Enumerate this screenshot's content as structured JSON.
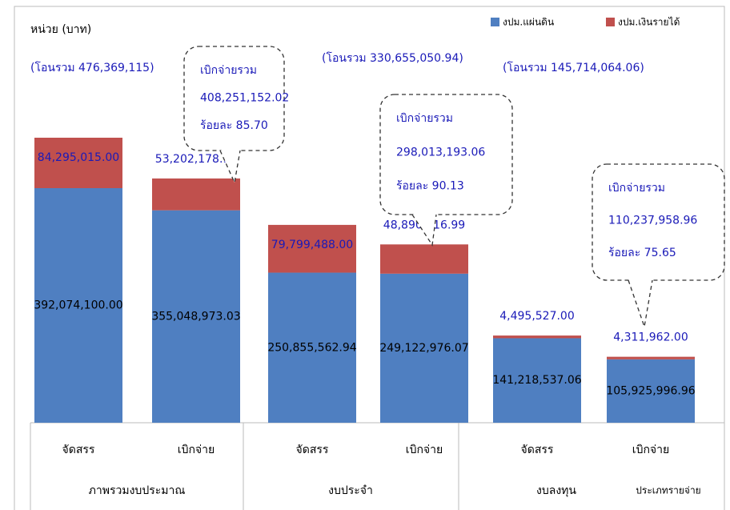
{
  "chart_data": {
    "type": "bar",
    "stacked": true,
    "unit_label": "หน่วย (บาท)",
    "categories": [
      "จัดสรร",
      "เบิกจ่าย",
      "จัดสรร",
      "เบิกจ่าย",
      "จัดสรร",
      "เบิกจ่าย"
    ],
    "groups": [
      "ภาพรวมงบประมาณ",
      "งบประจำ",
      "งบลงทุน"
    ],
    "x_label": "ประเภทรายจ่าย",
    "series": [
      {
        "name": "งปม.แผ่นดิน",
        "color": "#4f7fc1",
        "values": [
          392074100.0,
          355048973.03,
          250855562.94,
          249122976.07,
          141218537.06,
          105925996.96
        ],
        "value_labels": [
          "392,074,100.00",
          "355,048,973.03",
          "250,855,562.94",
          "249,122,976.07",
          "141,218,537.06",
          "105,925,996.96"
        ]
      },
      {
        "name": "งปม.เงินรายได้",
        "color": "#c0504d",
        "values": [
          84295015.0,
          53202178.99,
          79799488.0,
          48890216.99,
          4495527.0,
          4311962.0
        ],
        "value_labels": [
          "84,295,015.00",
          "53,202,178.99",
          "79,799,488.00",
          "48,890,216.99",
          "4,495,527.00",
          "4,311,962.00"
        ]
      }
    ],
    "totals": [
      "(โอนรวม 476,369,115)",
      "(โอนรวม 330,655,050.94)",
      "(โอนรวม 145,714,064.06)"
    ],
    "callouts": [
      {
        "lines": [
          "เบิกจ่ายรวม",
          "408,251,152.02",
          "ร้อยละ 85.70"
        ]
      },
      {
        "lines": [
          "เบิกจ่ายรวม",
          "298,013,193.06",
          "ร้อยละ 90.13"
        ]
      },
      {
        "lines": [
          "เบิกจ่ายรวม",
          "110,237,958.96",
          "ร้อยละ 75.65"
        ]
      }
    ]
  }
}
